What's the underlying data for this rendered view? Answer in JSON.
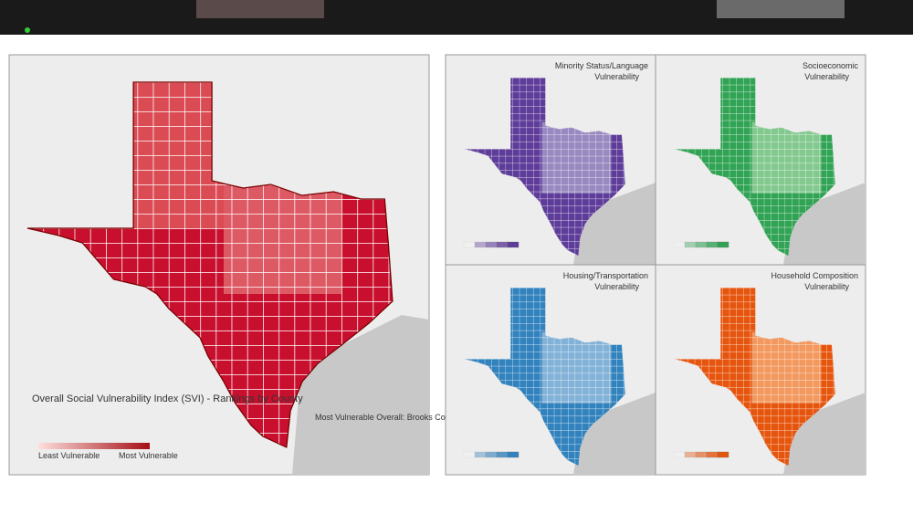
{
  "main_map": {
    "title": "Overall Social Vulnerability Index (SVI) - Rankings by County",
    "note": "Most Vulnerable Overall: Brooks County",
    "legend": {
      "low": "Least Vulnerable",
      "high": "Most Vulnerable"
    }
  },
  "panels": [
    {
      "title": "Minority Status/Language Vulnerability"
    },
    {
      "title": "Socioeconomic Vulnerability"
    },
    {
      "title": "Housing/Transportation Vulnerability"
    },
    {
      "title": "Household Composition Vulnerability"
    }
  ]
}
